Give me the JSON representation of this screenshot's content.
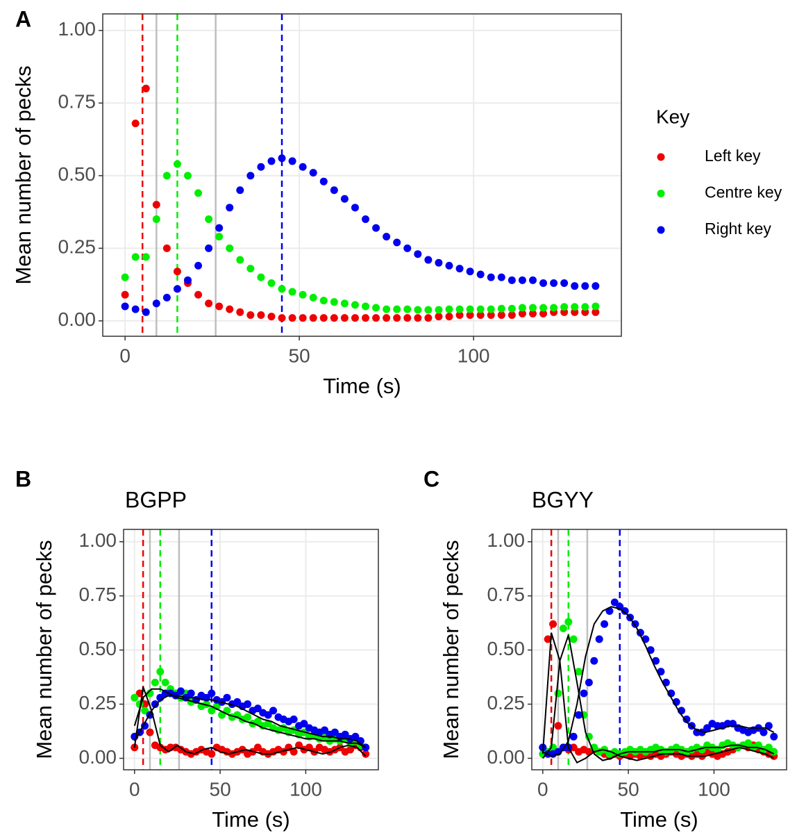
{
  "chart_data": [
    {
      "type": "scatter",
      "panel_label": "A",
      "xlabel": "Time (s)",
      "ylabel": "Mean number of pecks",
      "legend_title": "Key",
      "grid": true,
      "xlim": [
        -6.4,
        142.4
      ],
      "ylim": [
        -0.053,
        1.057
      ],
      "xticks": [
        0,
        50,
        100
      ],
      "yticks": [
        {
          "value": 0,
          "label": "0.00"
        },
        {
          "value": 0.25,
          "label": "0.25"
        },
        {
          "value": 0.5,
          "label": "0.50"
        },
        {
          "value": 0.75,
          "label": "0.75"
        },
        {
          "value": 1,
          "label": "1.00"
        }
      ],
      "vlines": [
        {
          "x": 5,
          "color": "#ee0000",
          "dashed": true
        },
        {
          "x": 9,
          "color": "#bebebe",
          "dashed": false
        },
        {
          "x": 15,
          "color": "#00ee00",
          "dashed": true
        },
        {
          "x": 26,
          "color": "#bebebe",
          "dashed": false
        },
        {
          "x": 45,
          "color": "#0000ee",
          "dashed": true
        }
      ],
      "x": [
        0,
        3,
        6,
        9,
        12,
        15,
        18,
        21,
        24,
        27,
        30,
        33,
        36,
        39,
        42,
        45,
        48,
        51,
        54,
        57,
        60,
        63,
        66,
        69,
        72,
        75,
        78,
        81,
        84,
        87,
        90,
        93,
        96,
        99,
        102,
        105,
        108,
        111,
        114,
        117,
        120,
        123,
        126,
        129,
        132,
        135
      ],
      "series": [
        {
          "name": "Left key",
          "color": "#ee0000",
          "values": [
            0.09,
            0.68,
            0.8,
            0.4,
            0.25,
            0.17,
            0.13,
            0.09,
            0.06,
            0.05,
            0.04,
            0.03,
            0.02,
            0.02,
            0.015,
            0.01,
            0.01,
            0.01,
            0.01,
            0.01,
            0.01,
            0.01,
            0.01,
            0.01,
            0.01,
            0.01,
            0.01,
            0.01,
            0.01,
            0.01,
            0.015,
            0.015,
            0.02,
            0.02,
            0.02,
            0.02,
            0.02,
            0.02,
            0.025,
            0.025,
            0.025,
            0.03,
            0.03,
            0.03,
            0.03,
            0.03
          ]
        },
        {
          "name": "Centre key",
          "color": "#00ee00",
          "values": [
            0.15,
            0.22,
            0.22,
            0.35,
            0.5,
            0.54,
            0.5,
            0.44,
            0.35,
            0.29,
            0.25,
            0.21,
            0.18,
            0.15,
            0.13,
            0.11,
            0.1,
            0.09,
            0.08,
            0.07,
            0.065,
            0.06,
            0.055,
            0.05,
            0.045,
            0.04,
            0.04,
            0.04,
            0.038,
            0.038,
            0.038,
            0.04,
            0.04,
            0.04,
            0.04,
            0.04,
            0.042,
            0.042,
            0.045,
            0.045,
            0.045,
            0.045,
            0.048,
            0.048,
            0.048,
            0.05
          ]
        },
        {
          "name": "Right key",
          "color": "#0000ee",
          "values": [
            0.05,
            0.04,
            0.03,
            0.06,
            0.08,
            0.11,
            0.14,
            0.19,
            0.25,
            0.32,
            0.39,
            0.45,
            0.5,
            0.53,
            0.55,
            0.56,
            0.55,
            0.53,
            0.51,
            0.48,
            0.45,
            0.42,
            0.39,
            0.35,
            0.32,
            0.29,
            0.27,
            0.25,
            0.23,
            0.21,
            0.2,
            0.19,
            0.18,
            0.17,
            0.16,
            0.15,
            0.15,
            0.14,
            0.14,
            0.14,
            0.13,
            0.13,
            0.13,
            0.12,
            0.12,
            0.12
          ]
        }
      ]
    },
    {
      "type": "scatter",
      "panel_label": "B",
      "title": "BGPP",
      "xlabel": "Time (s)",
      "ylabel": "Mean number of pecks",
      "grid": true,
      "xlim": [
        -6.4,
        142.4
      ],
      "ylim": [
        -0.053,
        1.057
      ],
      "xticks": [
        0,
        50,
        100
      ],
      "yticks": [
        {
          "value": 0,
          "label": "0.00"
        },
        {
          "value": 0.25,
          "label": "0.25"
        },
        {
          "value": 0.5,
          "label": "0.50"
        },
        {
          "value": 0.75,
          "label": "0.75"
        },
        {
          "value": 1,
          "label": "1.00"
        }
      ],
      "vlines": [
        {
          "x": 5,
          "color": "#ee0000",
          "dashed": true
        },
        {
          "x": 9,
          "color": "#bebebe",
          "dashed": false
        },
        {
          "x": 15,
          "color": "#00ee00",
          "dashed": true
        },
        {
          "x": 26,
          "color": "#bebebe",
          "dashed": false
        },
        {
          "x": 45,
          "color": "#0000ee",
          "dashed": true
        }
      ],
      "x": [
        0,
        3,
        6,
        9,
        12,
        15,
        18,
        21,
        24,
        27,
        30,
        33,
        36,
        39,
        42,
        45,
        48,
        51,
        54,
        57,
        60,
        63,
        66,
        69,
        72,
        75,
        78,
        81,
        84,
        87,
        90,
        93,
        96,
        99,
        102,
        105,
        108,
        111,
        114,
        117,
        120,
        123,
        126,
        129,
        132,
        135
      ],
      "fit_x": [
        0,
        5,
        10,
        15,
        20,
        25,
        30,
        35,
        40,
        45,
        50,
        55,
        60,
        65,
        70,
        75,
        80,
        85,
        90,
        95,
        100,
        105,
        110,
        115,
        120,
        125,
        130,
        135
      ],
      "fit_color": "#000000",
      "series": [
        {
          "color": "#ee0000",
          "values": [
            0.05,
            0.3,
            0.25,
            0.12,
            0.06,
            0.05,
            0.04,
            0.05,
            0.05,
            0.04,
            0.03,
            0.02,
            0.03,
            0.04,
            0.03,
            0.02,
            0.05,
            0.04,
            0.03,
            0.02,
            0.03,
            0.04,
            0.02,
            0.03,
            0.05,
            0.03,
            0.02,
            0.03,
            0.04,
            0.03,
            0.05,
            0.03,
            0.06,
            0.04,
            0.05,
            0.03,
            0.05,
            0.04,
            0.03,
            0.04,
            0.05,
            0.03,
            0.04,
            0.06,
            0.05,
            0.02
          ],
          "fit": [
            0.05,
            0.33,
            0.22,
            0.06,
            0.03,
            0.06,
            0.03,
            0.02,
            0.04,
            0.05,
            0.03,
            0.02,
            0.03,
            0.04,
            0.03,
            0.02,
            0.02,
            0.03,
            0.04,
            0.05,
            0.04,
            0.03,
            0.02,
            0.03,
            0.05,
            0.06,
            0.05,
            0.01
          ]
        },
        {
          "color": "#00ee00",
          "values": [
            0.28,
            0.25,
            0.22,
            0.3,
            0.35,
            0.4,
            0.35,
            0.32,
            0.3,
            0.28,
            0.3,
            0.26,
            0.27,
            0.24,
            0.25,
            0.22,
            0.24,
            0.2,
            0.22,
            0.19,
            0.2,
            0.18,
            0.19,
            0.16,
            0.17,
            0.15,
            0.16,
            0.14,
            0.13,
            0.14,
            0.12,
            0.13,
            0.11,
            0.12,
            0.1,
            0.11,
            0.09,
            0.1,
            0.08,
            0.09,
            0.08,
            0.09,
            0.07,
            0.08,
            0.06,
            0.05
          ],
          "fit": [
            0.15,
            0.28,
            0.32,
            0.32,
            0.3,
            0.28,
            0.27,
            0.26,
            0.25,
            0.24,
            0.22,
            0.2,
            0.19,
            0.17,
            0.16,
            0.14,
            0.13,
            0.12,
            0.11,
            0.1,
            0.09,
            0.09,
            0.08,
            0.08,
            0.08,
            0.07,
            0.07,
            0.05
          ]
        },
        {
          "color": "#0000ee",
          "values": [
            0.1,
            0.12,
            0.15,
            0.2,
            0.25,
            0.28,
            0.3,
            0.3,
            0.29,
            0.31,
            0.28,
            0.3,
            0.27,
            0.29,
            0.28,
            0.3,
            0.27,
            0.26,
            0.28,
            0.25,
            0.26,
            0.24,
            0.25,
            0.22,
            0.23,
            0.21,
            0.2,
            0.22,
            0.19,
            0.18,
            0.17,
            0.18,
            0.15,
            0.16,
            0.14,
            0.13,
            0.12,
            0.13,
            0.11,
            0.12,
            0.1,
            0.11,
            0.09,
            0.1,
            0.08,
            0.05
          ],
          "fit": [
            0.08,
            0.15,
            0.22,
            0.27,
            0.29,
            0.29,
            0.28,
            0.28,
            0.27,
            0.27,
            0.26,
            0.25,
            0.24,
            0.22,
            0.2,
            0.18,
            0.17,
            0.15,
            0.14,
            0.13,
            0.12,
            0.11,
            0.1,
            0.1,
            0.09,
            0.09,
            0.08,
            0.05
          ]
        }
      ]
    },
    {
      "type": "scatter",
      "panel_label": "C",
      "title": "BGYY",
      "xlabel": "Time (s)",
      "ylabel": "Mean number of pecks",
      "grid": true,
      "xlim": [
        -6.4,
        142.4
      ],
      "ylim": [
        -0.053,
        1.057
      ],
      "xticks": [
        0,
        50,
        100
      ],
      "yticks": [
        {
          "value": 0,
          "label": "0.00"
        },
        {
          "value": 0.25,
          "label": "0.25"
        },
        {
          "value": 0.5,
          "label": "0.50"
        },
        {
          "value": 0.75,
          "label": "0.75"
        },
        {
          "value": 1,
          "label": "1.00"
        }
      ],
      "vlines": [
        {
          "x": 5,
          "color": "#ee0000",
          "dashed": true
        },
        {
          "x": 9,
          "color": "#bebebe",
          "dashed": false
        },
        {
          "x": 15,
          "color": "#00ee00",
          "dashed": true
        },
        {
          "x": 26,
          "color": "#bebebe",
          "dashed": false
        },
        {
          "x": 45,
          "color": "#0000ee",
          "dashed": true
        }
      ],
      "x": [
        0,
        3,
        6,
        9,
        12,
        15,
        18,
        21,
        24,
        27,
        30,
        33,
        36,
        39,
        42,
        45,
        48,
        51,
        54,
        57,
        60,
        63,
        66,
        69,
        72,
        75,
        78,
        81,
        84,
        87,
        90,
        93,
        96,
        99,
        102,
        105,
        108,
        111,
        114,
        117,
        120,
        123,
        126,
        129,
        132,
        135
      ],
      "fit_x": [
        0,
        5,
        10,
        15,
        20,
        25,
        30,
        35,
        40,
        45,
        50,
        55,
        60,
        65,
        70,
        75,
        80,
        85,
        90,
        95,
        100,
        105,
        110,
        115,
        120,
        125,
        130,
        135
      ],
      "fit_color": "#000000",
      "series": [
        {
          "color": "#ee0000",
          "values": [
            0.05,
            0.55,
            0.62,
            0.15,
            0.05,
            0.04,
            0.05,
            0.03,
            0.04,
            0.03,
            0.04,
            0.03,
            0.02,
            0.01,
            0.02,
            0.01,
            0.02,
            0.01,
            0.02,
            0.01,
            0.02,
            0.01,
            0.02,
            0.01,
            0.02,
            0.03,
            0.02,
            0.01,
            0.02,
            0.01,
            0.02,
            0.01,
            0.03,
            0.02,
            0.01,
            0.02,
            0.03,
            0.04,
            0.05,
            0.06,
            0.05,
            0.06,
            0.04,
            0.03,
            0.02,
            0.01
          ],
          "fit": [
            0.02,
            0.58,
            0.45,
            0.05,
            -0.02,
            0.0,
            0.03,
            0.04,
            0.03,
            0.01,
            0.0,
            -0.01,
            0.0,
            0.01,
            0.02,
            0.02,
            0.02,
            0.01,
            0.01,
            0.01,
            0.02,
            0.03,
            0.04,
            0.05,
            0.04,
            0.03,
            0.02,
            0.0
          ]
        },
        {
          "color": "#00ee00",
          "values": [
            0.02,
            0.03,
            0.05,
            0.3,
            0.6,
            0.63,
            0.55,
            0.4,
            0.2,
            0.1,
            0.05,
            0.03,
            0.04,
            0.02,
            0.03,
            0.02,
            0.03,
            0.04,
            0.03,
            0.04,
            0.03,
            0.04,
            0.05,
            0.04,
            0.03,
            0.04,
            0.05,
            0.04,
            0.03,
            0.04,
            0.05,
            0.04,
            0.06,
            0.05,
            0.04,
            0.06,
            0.07,
            0.06,
            0.05,
            0.06,
            0.07,
            0.05,
            0.06,
            0.04,
            0.05,
            0.03
          ],
          "fit": [
            0.0,
            0.05,
            0.45,
            0.57,
            0.35,
            0.12,
            0.02,
            -0.01,
            0.0,
            0.02,
            0.03,
            0.03,
            0.03,
            0.03,
            0.04,
            0.04,
            0.04,
            0.03,
            0.04,
            0.05,
            0.05,
            0.05,
            0.06,
            0.06,
            0.05,
            0.05,
            0.04,
            0.02
          ]
        },
        {
          "color": "#0000ee",
          "values": [
            0.05,
            0.02,
            0.02,
            0.03,
            0.05,
            0.05,
            0.1,
            0.2,
            0.3,
            0.35,
            0.45,
            0.55,
            0.62,
            0.68,
            0.72,
            0.7,
            0.68,
            0.65,
            0.62,
            0.58,
            0.55,
            0.5,
            0.45,
            0.4,
            0.35,
            0.3,
            0.26,
            0.22,
            0.18,
            0.15,
            0.12,
            0.12,
            0.14,
            0.16,
            0.15,
            0.15,
            0.16,
            0.16,
            0.14,
            0.13,
            0.12,
            0.13,
            0.14,
            0.12,
            0.15,
            0.1
          ],
          "fit": [
            0.03,
            0.01,
            0.02,
            0.08,
            0.25,
            0.47,
            0.62,
            0.68,
            0.7,
            0.69,
            0.66,
            0.6,
            0.52,
            0.43,
            0.35,
            0.28,
            0.21,
            0.16,
            0.13,
            0.12,
            0.13,
            0.14,
            0.15,
            0.15,
            0.14,
            0.14,
            0.14,
            0.12
          ]
        }
      ]
    }
  ]
}
